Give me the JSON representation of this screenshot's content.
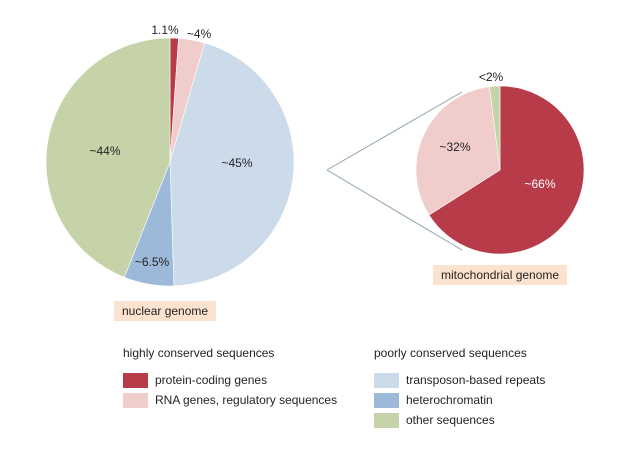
{
  "chart_data": [
    {
      "type": "pie",
      "caption": "nuclear genome",
      "slices": [
        {
          "label": "1.1%",
          "value": 1.1,
          "category": "protein-coding genes",
          "color": "#b83b4a"
        },
        {
          "label": "~4%",
          "value": 3.4,
          "category": "RNA genes, regulatory sequences",
          "color": "#f0cdcb"
        },
        {
          "label": "~45%",
          "value": 45,
          "category": "transposon-based repeats",
          "color": "#ccdbe9"
        },
        {
          "label": "~6.5%",
          "value": 6.5,
          "category": "heterochromatin",
          "color": "#9db9d9"
        },
        {
          "label": "~44%",
          "value": 44,
          "category": "other sequences",
          "color": "#c6d3a8"
        }
      ]
    },
    {
      "type": "pie",
      "caption": "mitochondrial genome",
      "slices": [
        {
          "label": "~66%",
          "value": 66,
          "category": "protein-coding genes",
          "color": "#b83b4a"
        },
        {
          "label": "~32%",
          "value": 32,
          "category": "RNA genes, regulatory sequences",
          "color": "#f0cdcb"
        },
        {
          "label": "<2%",
          "value": 2,
          "category": "other sequences",
          "color": "#c6d3a8"
        }
      ]
    }
  ],
  "legend": {
    "groups": [
      {
        "title": "highly conserved sequences",
        "items": [
          {
            "label": "protein-coding genes",
            "color": "#b83b4a"
          },
          {
            "label": "RNA genes, regulatory sequences",
            "color": "#f0cdcb"
          }
        ]
      },
      {
        "title": "poorly conserved sequences",
        "items": [
          {
            "label": "transposon-based repeats",
            "color": "#ccdbe9"
          },
          {
            "label": "heterochromatin",
            "color": "#9db9d9"
          },
          {
            "label": "other sequences",
            "color": "#c6d3a8"
          }
        ]
      }
    ]
  },
  "connector_color": "#8fa3ad"
}
